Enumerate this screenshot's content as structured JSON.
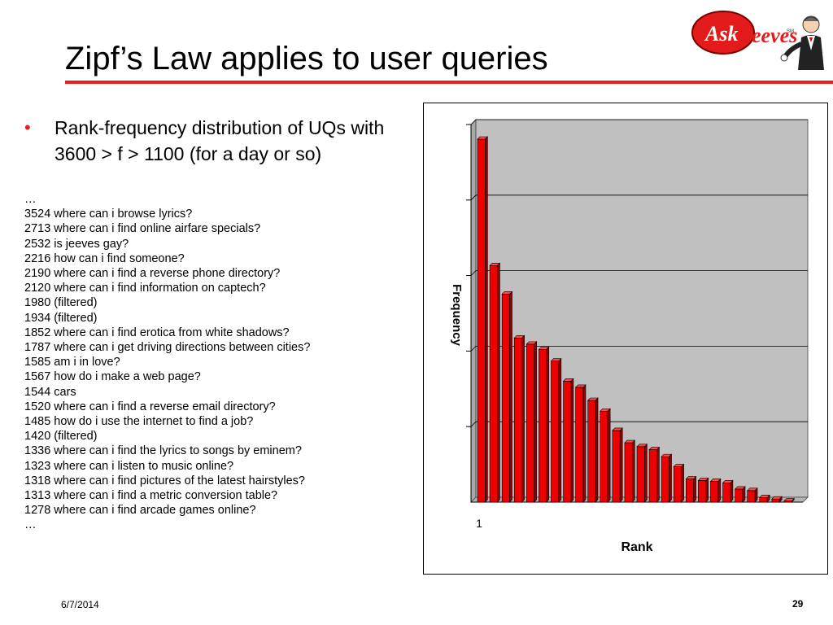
{
  "slide": {
    "title": "Zipf’s Law applies to user queries",
    "bullet": "Rank-frequency distribution of UQs with 3600 > f > 1100 (for a day or so)",
    "bullet_marker": "•",
    "queries": [
      "…",
      "3524 where can i browse lyrics?",
      "2713 where can i find online airfare specials?",
      "2532 is jeeves gay?",
      "2216 how can i find someone?",
      "2190 where can i find a reverse phone directory?",
      "2120 where can i find information on captech?",
      "1980 (filtered)",
      "1934 (filtered)",
      "1852 where can i find erotica from white shadows?",
      "1787 where can i get driving directions between cities?",
      "1585 am i in love?",
      "1567 how do i make a web page?",
      "1544 cars",
      "1520 where can i find a reverse email directory?",
      "1485 how do i use the internet to find a job?",
      "1420 (filtered)",
      "1336 where can i find the lyrics to songs by eminem?",
      "1323 where can i listen to music online?",
      "1318 where can i find pictures of the latest hairstyles?",
      "1313 where can i find a metric conversion table?",
      "1278 where can i find arcade games online?",
      "…"
    ],
    "footer": {
      "date": "6/7/2014",
      "page": "29"
    },
    "logo": {
      "text_ask": "Ask",
      "text_jeeves": "Jeeves",
      "mark": "SM"
    }
  },
  "colors": {
    "accent": "#ee1c1c",
    "bar": "#ee0000",
    "bar_dark": "#8b0000",
    "plot_bg": "#c0c0c0"
  },
  "chart_data": {
    "type": "bar",
    "title": "",
    "xlabel": "Rank",
    "ylabel": "Frequency",
    "x_tick_labels": [
      "1"
    ],
    "ylim": [
      0,
      4900
    ],
    "y_gridlines": 5,
    "show_y_tick_labels": false,
    "style": "3d",
    "values": [
      4710,
      3070,
      2700,
      2130,
      2050,
      1980,
      1830,
      1570,
      1490,
      1320,
      1180,
      930,
      770,
      720,
      680,
      590,
      460,
      300,
      280,
      270,
      250,
      170,
      150,
      60,
      40,
      15
    ]
  }
}
